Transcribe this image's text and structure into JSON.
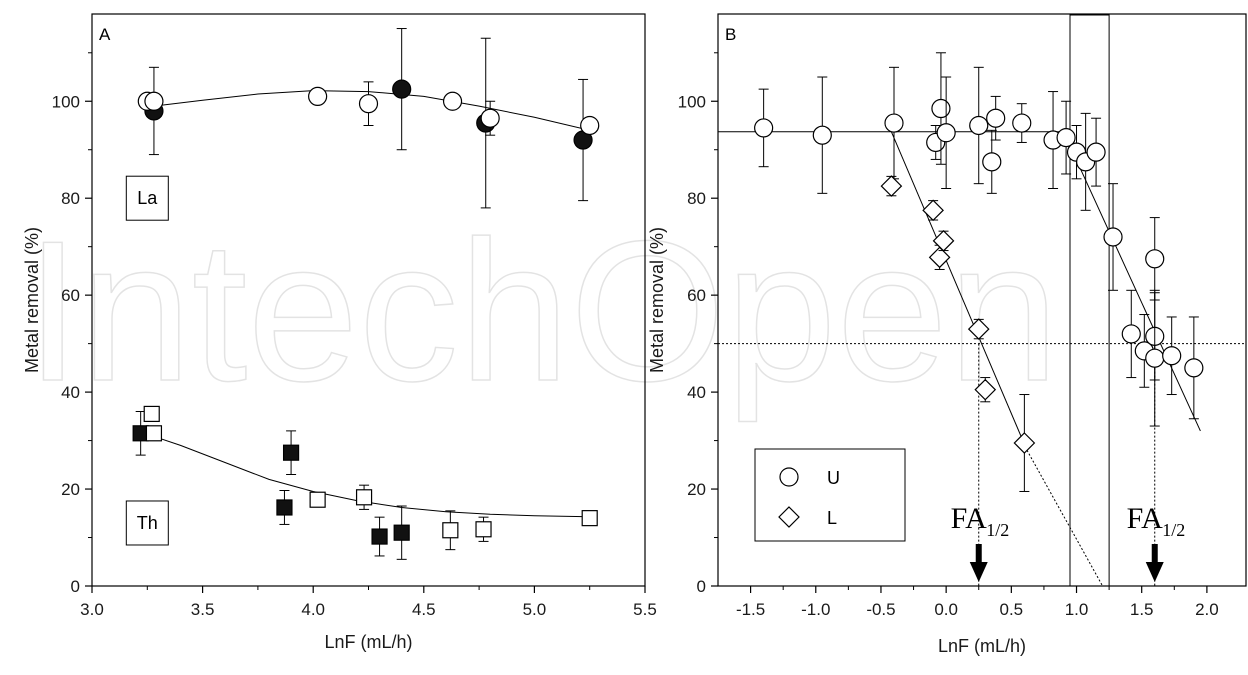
{
  "watermark_text": "IntechOpen",
  "chart_data": [
    {
      "panel": "A",
      "type": "scatter",
      "xlabel": "LnF (mL/h)",
      "ylabel": "Metal removal (%)",
      "xlim": [
        3.0,
        5.5
      ],
      "ylim": [
        0,
        118
      ],
      "xticks": [
        "3.0",
        "3.5",
        "4.0",
        "4.5",
        "5.0",
        "5.5"
      ],
      "yticks": [
        "0",
        "20",
        "40",
        "60",
        "80",
        "100"
      ],
      "grid": false,
      "box_labels": [
        "La",
        "Th"
      ],
      "series": [
        {
          "marker": "filled-circle",
          "points": [
            {
              "x": 3.28,
              "y": 98,
              "err": 9
            },
            {
              "x": 4.4,
              "y": 102.5,
              "err": 12.5
            },
            {
              "x": 4.78,
              "y": 95.5,
              "err": 17.5
            },
            {
              "x": 5.22,
              "y": 92,
              "err": 12.5
            }
          ]
        },
        {
          "marker": "open-circle",
          "points": [
            {
              "x": 3.25,
              "y": 100
            },
            {
              "x": 3.28,
              "y": 100
            },
            {
              "x": 4.02,
              "y": 101
            },
            {
              "x": 4.25,
              "y": 99.5,
              "err": 4.5
            },
            {
              "x": 4.63,
              "y": 100
            },
            {
              "x": 4.8,
              "y": 96.5,
              "err": 3.5
            },
            {
              "x": 5.25,
              "y": 95
            }
          ]
        },
        {
          "marker": "filled-square",
          "points": [
            {
              "x": 3.22,
              "y": 31.5,
              "err": 4.5
            },
            {
              "x": 3.87,
              "y": 16.2,
              "err": 3.5
            },
            {
              "x": 3.9,
              "y": 27.5,
              "err": 4.5
            },
            {
              "x": 4.3,
              "y": 10.2,
              "err": 4
            },
            {
              "x": 4.4,
              "y": 11,
              "err": 5.5
            }
          ]
        },
        {
          "marker": "open-square",
          "points": [
            {
              "x": 3.27,
              "y": 35.5
            },
            {
              "x": 3.28,
              "y": 31.5
            },
            {
              "x": 4.02,
              "y": 17.8
            },
            {
              "x": 4.23,
              "y": 18.3,
              "err": 2.5
            },
            {
              "x": 4.62,
              "y": 11.5,
              "err": 4
            },
            {
              "x": 4.77,
              "y": 11.7,
              "err": 2.5
            },
            {
              "x": 5.25,
              "y": 14
            }
          ]
        }
      ],
      "fits": [
        {
          "label": "La fit",
          "points": [
            [
              3.28,
              99
            ],
            [
              3.5,
              100.2
            ],
            [
              3.75,
              101.5
            ],
            [
              4.0,
              102.2
            ],
            [
              4.25,
              102
            ],
            [
              4.5,
              101
            ],
            [
              4.75,
              99
            ],
            [
              5.0,
              96.7
            ],
            [
              5.25,
              94
            ]
          ]
        },
        {
          "label": "Th fit",
          "points": [
            [
              3.27,
              31
            ],
            [
              3.4,
              29
            ],
            [
              3.6,
              25.5
            ],
            [
              3.8,
              22
            ],
            [
              4.0,
              19.5
            ],
            [
              4.2,
              17.6
            ],
            [
              4.4,
              16.2
            ],
            [
              4.6,
              15.3
            ],
            [
              4.8,
              14.8
            ],
            [
              5.0,
              14.5
            ],
            [
              5.25,
              14.3
            ]
          ]
        }
      ]
    },
    {
      "panel": "B",
      "type": "scatter",
      "xlabel": "LnF (mL/h)",
      "ylabel": "Metal removal (%)",
      "xlim": [
        -1.75,
        2.3
      ],
      "ylim": [
        0,
        118
      ],
      "xticks": [
        "-1.5",
        "-1.0",
        "-0.5",
        "0.0",
        "0.5",
        "1.0",
        "1.5",
        "2.0"
      ],
      "yticks": [
        "0",
        "20",
        "40",
        "60",
        "80",
        "100"
      ],
      "grid": false,
      "legend": {
        "placement": "bottom-left",
        "entries": [
          {
            "marker": "open-circle",
            "label": "U"
          },
          {
            "marker": "open-diamond",
            "label": "L"
          }
        ]
      },
      "reference_line_y": 50,
      "annotations": [
        {
          "text": "FA",
          "subscript": "1/2",
          "x": 0.25
        },
        {
          "text": "FA",
          "subscript": "1/2",
          "x": 1.6
        }
      ],
      "highlight_x_range": [
        0.95,
        1.25
      ],
      "series": [
        {
          "name": "U",
          "marker": "open-circle",
          "points": [
            {
              "x": -1.4,
              "y": 94.5,
              "err": 8
            },
            {
              "x": -0.95,
              "y": 93,
              "err": 12
            },
            {
              "x": -0.4,
              "y": 95.5,
              "err": 11.5
            },
            {
              "x": -0.08,
              "y": 91.5,
              "err": 3.5
            },
            {
              "x": -0.04,
              "y": 98.5,
              "err": 11.5
            },
            {
              "x": 0.0,
              "y": 93.5,
              "err": 11.5
            },
            {
              "x": 0.25,
              "y": 95,
              "err": 12
            },
            {
              "x": 0.35,
              "y": 87.5,
              "err": 6.5
            },
            {
              "x": 0.38,
              "y": 96.5,
              "err": 4.5
            },
            {
              "x": 0.58,
              "y": 95.5,
              "err": 4
            },
            {
              "x": 0.82,
              "y": 92,
              "err": 10
            },
            {
              "x": 0.92,
              "y": 92.5,
              "err": 7.5
            },
            {
              "x": 1.0,
              "y": 89.5,
              "err": 5.5
            },
            {
              "x": 1.07,
              "y": 87.5,
              "err": 10
            },
            {
              "x": 1.15,
              "y": 89.5,
              "err": 7
            },
            {
              "x": 1.28,
              "y": 72,
              "err": 11
            },
            {
              "x": 1.42,
              "y": 52,
              "err": 9
            },
            {
              "x": 1.52,
              "y": 48.5,
              "err": 7.5
            },
            {
              "x": 1.6,
              "y": 67.5,
              "err": 8.5
            },
            {
              "x": 1.6,
              "y": 51.5,
              "err": 9
            },
            {
              "x": 1.6,
              "y": 47,
              "err": 14
            },
            {
              "x": 1.73,
              "y": 47.5,
              "err": 8
            },
            {
              "x": 1.9,
              "y": 45,
              "err": 10.5
            }
          ]
        },
        {
          "name": "L",
          "marker": "open-diamond",
          "points": [
            {
              "x": -0.42,
              "y": 82.5,
              "err": 2
            },
            {
              "x": -0.1,
              "y": 77.5,
              "err": 2
            },
            {
              "x": -0.05,
              "y": 67.8,
              "err": 2.5
            },
            {
              "x": -0.02,
              "y": 71.2,
              "err": 2
            },
            {
              "x": 0.25,
              "y": 53,
              "err": 2
            },
            {
              "x": 0.3,
              "y": 40.5,
              "err": 2.5
            },
            {
              "x": 0.6,
              "y": 29.5,
              "err": 10
            }
          ]
        }
      ],
      "fits": [
        {
          "label": "U plateau",
          "points": [
            [
              -1.75,
              93.7
            ],
            [
              0.9,
              93.7
            ]
          ]
        },
        {
          "label": "U decline",
          "points": [
            [
              0.9,
              93.7
            ],
            [
              1.95,
              32
            ]
          ]
        },
        {
          "label": "L decline",
          "points": [
            [
              -0.42,
              93.7
            ],
            [
              0.62,
              28
            ]
          ]
        },
        {
          "label": "L extrapolation",
          "dashed": true,
          "points": [
            [
              0.62,
              28
            ],
            [
              1.2,
              0
            ]
          ]
        }
      ]
    }
  ]
}
